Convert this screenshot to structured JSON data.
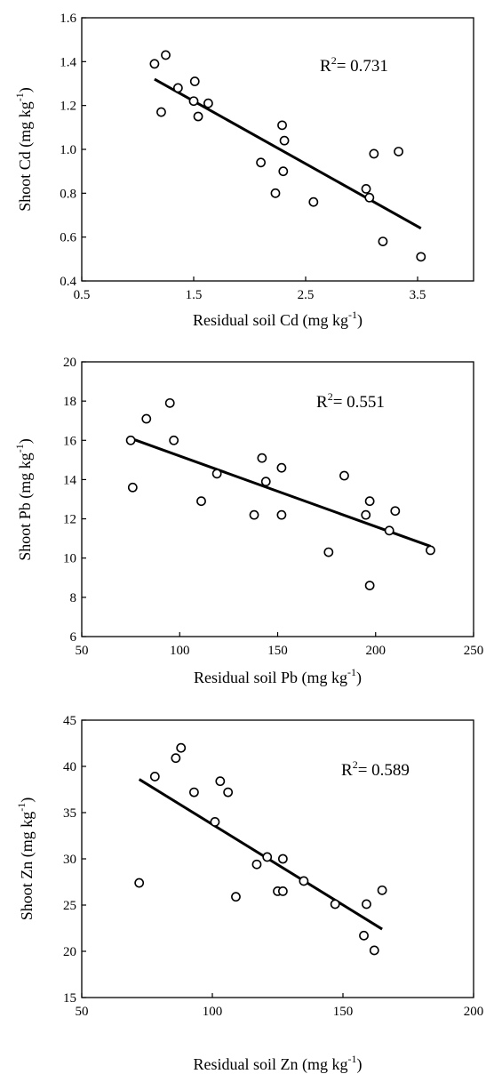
{
  "chart_data": [
    {
      "type": "scatter",
      "title": "",
      "xlabel": "Residual soil Cd (mg kg",
      "xlabel_sup": "-1",
      "xlabel_end": ")",
      "ylabel": "Shoot Cd (mg kg",
      "ylabel_sup": "-1",
      "ylabel_end": ")",
      "xlim": [
        0.5,
        4.0
      ],
      "ylim": [
        0.4,
        1.6
      ],
      "xticks": [
        0.5,
        1.5,
        2.5,
        3.5
      ],
      "xtick_labels": [
        "0.5",
        "1.5",
        "2.5",
        "3.5"
      ],
      "yticks": [
        0.4,
        0.6,
        0.8,
        1.0,
        1.2,
        1.4,
        1.6
      ],
      "ytick_labels": [
        "0.4",
        "0.6",
        "0.8",
        "1.0",
        "1.2",
        "1.4",
        "1.6"
      ],
      "annotation": {
        "prefix": "R",
        "sup": "2",
        "text": "= 0.731"
      },
      "grid": false,
      "points": [
        {
          "x": 1.15,
          "y": 1.39
        },
        {
          "x": 1.25,
          "y": 1.43
        },
        {
          "x": 1.21,
          "y": 1.17
        },
        {
          "x": 1.36,
          "y": 1.28
        },
        {
          "x": 1.51,
          "y": 1.31
        },
        {
          "x": 1.5,
          "y": 1.22
        },
        {
          "x": 1.54,
          "y": 1.15
        },
        {
          "x": 1.63,
          "y": 1.21
        },
        {
          "x": 2.1,
          "y": 0.94
        },
        {
          "x": 2.23,
          "y": 0.8
        },
        {
          "x": 2.29,
          "y": 1.11
        },
        {
          "x": 2.31,
          "y": 1.04
        },
        {
          "x": 2.3,
          "y": 0.9
        },
        {
          "x": 2.57,
          "y": 0.76
        },
        {
          "x": 3.04,
          "y": 0.82
        },
        {
          "x": 3.07,
          "y": 0.78
        },
        {
          "x": 3.11,
          "y": 0.98
        },
        {
          "x": 3.19,
          "y": 0.58
        },
        {
          "x": 3.33,
          "y": 0.99
        },
        {
          "x": 3.53,
          "y": 0.51
        }
      ],
      "fit_line": [
        {
          "x": 1.15,
          "y": 1.32
        },
        {
          "x": 3.53,
          "y": 0.64
        }
      ]
    },
    {
      "type": "scatter",
      "title": "",
      "xlabel": "Residual soil Pb (mg kg",
      "xlabel_sup": "-1",
      "xlabel_end": ")",
      "ylabel": "Shoot Pb (mg kg",
      "ylabel_sup": "-1",
      "ylabel_end": ")",
      "xlim": [
        50,
        250
      ],
      "ylim": [
        6,
        20
      ],
      "xticks": [
        50,
        100,
        150,
        200,
        250
      ],
      "xtick_labels": [
        "50",
        "100",
        "150",
        "200",
        "250"
      ],
      "yticks": [
        6,
        8,
        10,
        12,
        14,
        16,
        18,
        20
      ],
      "ytick_labels": [
        "6",
        "8",
        "10",
        "12",
        "14",
        "16",
        "18",
        "20"
      ],
      "annotation": {
        "prefix": "R",
        "sup": "2",
        "text": "= 0.551"
      },
      "grid": false,
      "points": [
        {
          "x": 75,
          "y": 16.0
        },
        {
          "x": 76,
          "y": 13.6
        },
        {
          "x": 83,
          "y": 17.1
        },
        {
          "x": 95,
          "y": 17.9
        },
        {
          "x": 97,
          "y": 16.0
        },
        {
          "x": 111,
          "y": 12.9
        },
        {
          "x": 119,
          "y": 14.3
        },
        {
          "x": 138,
          "y": 12.2
        },
        {
          "x": 142,
          "y": 15.1
        },
        {
          "x": 144,
          "y": 13.9
        },
        {
          "x": 152,
          "y": 14.6
        },
        {
          "x": 152,
          "y": 12.2
        },
        {
          "x": 176,
          "y": 10.3
        },
        {
          "x": 184,
          "y": 14.2
        },
        {
          "x": 195,
          "y": 12.2
        },
        {
          "x": 197,
          "y": 12.9
        },
        {
          "x": 197,
          "y": 8.6
        },
        {
          "x": 207,
          "y": 11.4
        },
        {
          "x": 210,
          "y": 12.4
        },
        {
          "x": 228,
          "y": 10.4
        }
      ],
      "fit_line": [
        {
          "x": 75,
          "y": 16.1
        },
        {
          "x": 228,
          "y": 10.6
        }
      ]
    },
    {
      "type": "scatter",
      "title": "",
      "xlabel": "Residual soil Zn (mg kg",
      "xlabel_sup": "-1",
      "xlabel_end": ")",
      "ylabel": "Shoot Zn (mg kg",
      "ylabel_sup": "-1",
      "ylabel_end": ")",
      "xlim": [
        50,
        200
      ],
      "ylim": [
        15,
        45
      ],
      "xticks": [
        50,
        100,
        150,
        200
      ],
      "xtick_labels": [
        "50",
        "100",
        "150",
        "200"
      ],
      "yticks": [
        15,
        20,
        25,
        30,
        35,
        40,
        45
      ],
      "ytick_labels": [
        "15",
        "20",
        "25",
        "30",
        "35",
        "40",
        "45"
      ],
      "annotation": {
        "prefix": "R",
        "sup": "2",
        "text": "= 0.589"
      },
      "grid": false,
      "points": [
        {
          "x": 72,
          "y": 27.4
        },
        {
          "x": 78,
          "y": 38.9
        },
        {
          "x": 86,
          "y": 40.9
        },
        {
          "x": 88,
          "y": 42.0
        },
        {
          "x": 93,
          "y": 37.2
        },
        {
          "x": 101,
          "y": 34.0
        },
        {
          "x": 103,
          "y": 38.4
        },
        {
          "x": 106,
          "y": 37.2
        },
        {
          "x": 109,
          "y": 25.9
        },
        {
          "x": 117,
          "y": 29.4
        },
        {
          "x": 121,
          "y": 30.2
        },
        {
          "x": 125,
          "y": 26.5
        },
        {
          "x": 127,
          "y": 26.5
        },
        {
          "x": 127,
          "y": 30.0
        },
        {
          "x": 135,
          "y": 27.6
        },
        {
          "x": 147,
          "y": 25.1
        },
        {
          "x": 158,
          "y": 21.7
        },
        {
          "x": 159,
          "y": 25.1
        },
        {
          "x": 162,
          "y": 20.1
        },
        {
          "x": 165,
          "y": 26.6
        }
      ],
      "fit_line": [
        {
          "x": 72,
          "y": 38.6
        },
        {
          "x": 165,
          "y": 22.4
        }
      ]
    }
  ]
}
